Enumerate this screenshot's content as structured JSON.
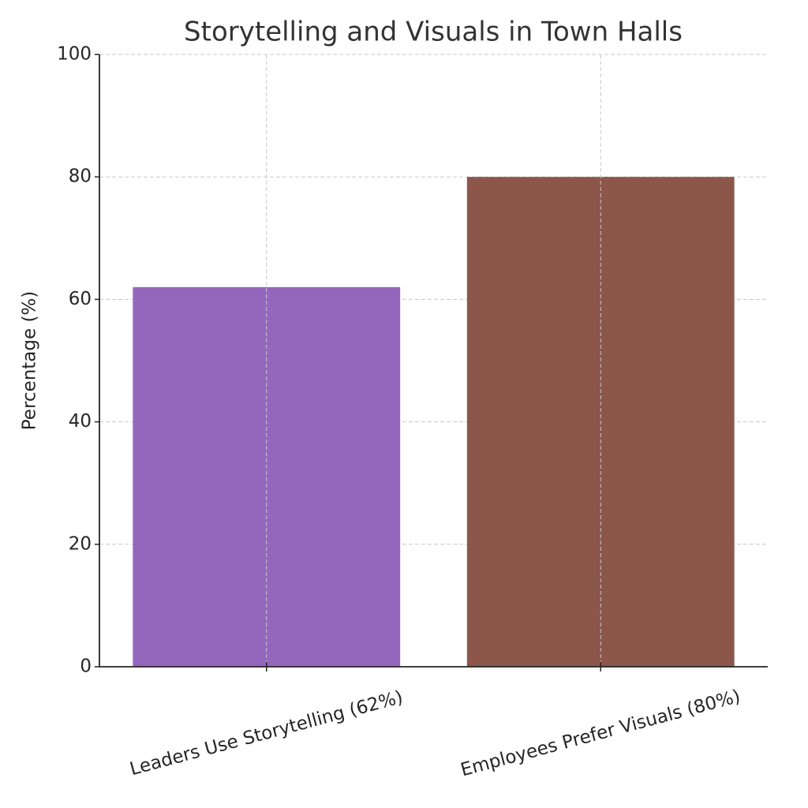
{
  "chart_data": {
    "type": "bar",
    "title": "Storytelling and Visuals in Town Halls",
    "y_label": "Percentage (%)",
    "categories": [
      "Leaders Use Storytelling (62%)",
      "Employees Prefer Visuals (80%)"
    ],
    "values": [
      62,
      80
    ],
    "colors": [
      "#9467bd",
      "#8c564b"
    ],
    "ylim": [
      0,
      100
    ],
    "yticks": [
      0,
      20,
      40,
      60,
      80,
      100
    ],
    "grid": true
  }
}
